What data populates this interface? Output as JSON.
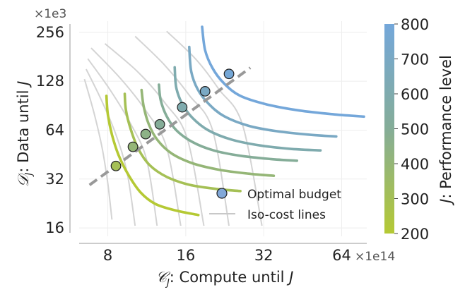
{
  "chart_data": {
    "type": "line",
    "xlabel": "𝒞_J: Compute until J",
    "xlabel_parts": {
      "symbol": "𝒞",
      "sub": "J",
      "text": ": Compute until ",
      "var": "J"
    },
    "ylabel_parts": {
      "symbol": "𝒟",
      "sub": "J",
      "text": ": Data until ",
      "var": "J"
    },
    "x_scale": "log2",
    "y_scale": "log2",
    "xlim": [
      6.2,
      80
    ],
    "ylim": [
      14.2,
      300
    ],
    "x_multiplier": "×1e14",
    "y_multiplier": "×1e3",
    "x_ticks": [
      8,
      16,
      32,
      64
    ],
    "x_tick_labels": [
      "8",
      "16",
      "32",
      "64"
    ],
    "y_ticks": [
      16,
      32,
      64,
      128,
      256
    ],
    "y_tick_labels": [
      "16",
      "32",
      "64",
      "128",
      "256"
    ],
    "grid": true,
    "legend": {
      "placement": "bottom-right",
      "entries": [
        {
          "label": "Optimal budget",
          "marker": "circle"
        },
        {
          "label": "Iso-cost lines",
          "marker": "line"
        }
      ]
    },
    "colorbar": {
      "label_parts": {
        "var": "J",
        "text": ": Performance level"
      },
      "min": 200,
      "max": 800,
      "ticks": [
        200,
        300,
        400,
        500,
        600,
        700,
        800
      ],
      "tick_labels": [
        "200",
        "300",
        "400",
        "500",
        "600",
        "700",
        "800"
      ],
      "color_low": "#b5c934",
      "color_mid": "#85ad98",
      "color_high": "#74a7da"
    },
    "optimal_line": {
      "x": [
        6.8,
        28.4
      ],
      "y": [
        29.4,
        155
      ],
      "color": "#999999"
    },
    "iso_perf_curves": [
      {
        "level": 200,
        "x": [
          7.9,
          8.0,
          8.3,
          8.8,
          9.6,
          10.7,
          12.2,
          14.6,
          17.9
        ],
        "y": [
          104,
          80,
          60,
          45,
          34,
          26.5,
          22.5,
          20.5,
          19.2
        ]
      },
      {
        "level": 300,
        "x": [
          9.3,
          9.4,
          9.8,
          10.5,
          11.6,
          13.5,
          16.5,
          21,
          26
        ],
        "y": [
          107,
          85,
          65,
          49,
          39,
          33,
          29.5,
          27.8,
          27.0
        ]
      },
      {
        "level": 400,
        "x": [
          10.8,
          11.0,
          11.5,
          12.4,
          14.1,
          17,
          21.5,
          28,
          35
        ],
        "y": [
          113,
          90,
          70,
          56,
          46,
          40,
          36.5,
          34.5,
          33.5
        ]
      },
      {
        "level": 500,
        "x": [
          12.6,
          12.8,
          13.5,
          14.7,
          17,
          20.5,
          26,
          34,
          43
        ],
        "y": [
          122,
          98,
          78,
          64,
          54,
          48,
          44.5,
          42.5,
          41.5
        ]
      },
      {
        "level": 600,
        "x": [
          14.5,
          14.7,
          15.5,
          17,
          19.5,
          24,
          31,
          41,
          53
        ],
        "y": [
          156,
          117,
          93,
          76,
          64,
          56,
          51.5,
          49,
          48
        ]
      },
      {
        "level": 700,
        "x": [
          16.5,
          16.8,
          17.8,
          19.6,
          22.5,
          28,
          36,
          48,
          61
        ],
        "y": [
          208,
          147,
          114,
          93,
          78,
          68,
          63,
          60,
          58.5
        ]
      },
      {
        "level": 800,
        "x": [
          18.5,
          19,
          20.3,
          22.5,
          26,
          33,
          44,
          60,
          78
        ],
        "y": [
          277,
          199,
          154,
          124,
          104,
          92,
          84.5,
          80,
          77.5
        ]
      }
    ],
    "optimal_points": [
      {
        "level": 300,
        "x": 8.6,
        "y": 38.5
      },
      {
        "level": 400,
        "x": 10.0,
        "y": 50.5
      },
      {
        "level": 450,
        "x": 11.2,
        "y": 60.5
      },
      {
        "level": 500,
        "x": 12.7,
        "y": 69.5
      },
      {
        "level": 600,
        "x": 15.5,
        "y": 88.5
      },
      {
        "level": 700,
        "x": 19.0,
        "y": 111
      },
      {
        "level": 780,
        "x": 23.5,
        "y": 142
      }
    ],
    "iso_cost_lines": [
      {
        "x": [
          6.5,
          7.1,
          7.6,
          8.0,
          8.3
        ],
        "y": [
          132,
          80,
          50,
          30,
          18
        ]
      },
      {
        "x": [
          6.6,
          7.6,
          8.6,
          9.5,
          10.2
        ],
        "y": [
          152,
          96,
          60,
          35,
          16.5
        ]
      },
      {
        "x": [
          6.7,
          8.2,
          9.8,
          11.3,
          12.4
        ],
        "y": [
          176,
          112,
          70,
          42,
          16.5
        ]
      },
      {
        "x": [
          6.9,
          9.0,
          11.3,
          13.5,
          15.3
        ],
        "y": [
          205,
          132,
          83,
          50,
          16.5
        ]
      },
      {
        "x": [
          7.8,
          10.5,
          13.3,
          16.2,
          18.8
        ],
        "y": [
          218,
          145,
          94,
          57,
          16.5
        ]
      },
      {
        "x": [
          10.2,
          13.2,
          16.5,
          20.3,
          23.5
        ],
        "y": [
          242,
          162,
          105,
          64,
          16.5
        ]
      },
      {
        "x": [
          13.5,
          17.5,
          21.5,
          26.5,
          31.5
        ],
        "y": [
          260,
          175,
          114,
          69,
          16.5
        ]
      }
    ]
  }
}
